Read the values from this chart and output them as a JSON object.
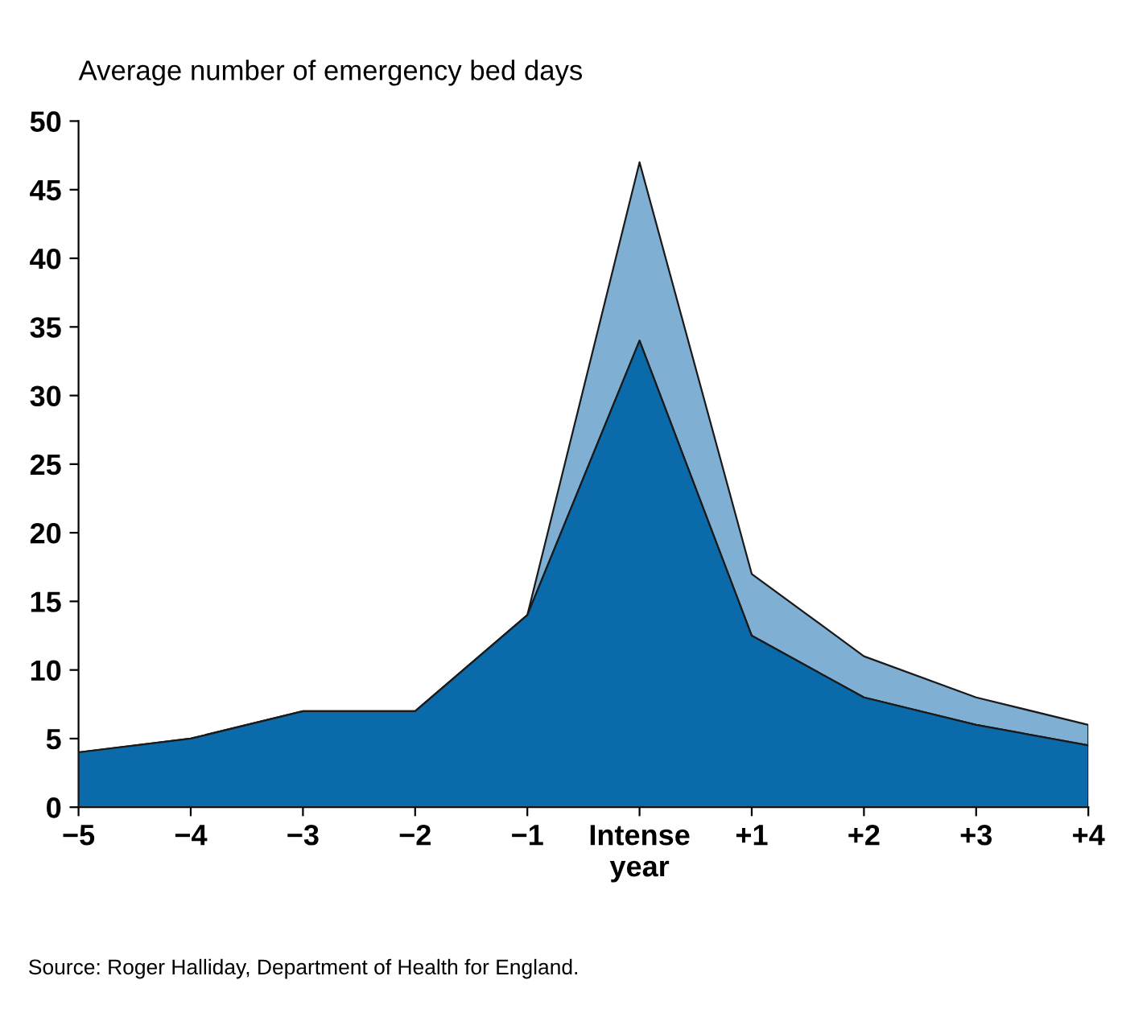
{
  "chart_data": {
    "type": "area",
    "stacked": true,
    "ylabel": "Average number of emergency bed days",
    "categories": [
      "−5",
      "−4",
      "−3",
      "−2",
      "−1",
      "Intense\nyear",
      "+1",
      "+2",
      "+3",
      "+4"
    ],
    "series": [
      {
        "color": "#0a6aaa",
        "values": [
          4,
          5,
          7,
          7,
          14,
          34,
          12.5,
          8,
          6,
          4.5
        ]
      },
      {
        "color": "#7fb0d4",
        "values": [
          0,
          0,
          0,
          0,
          0,
          13,
          4.5,
          3,
          2,
          1.5
        ]
      }
    ],
    "ylim": [
      0,
      50
    ],
    "yticks": [
      0,
      5,
      10,
      15,
      20,
      25,
      30,
      35,
      40,
      45,
      50
    ],
    "grid": false,
    "annotations": [
      "Source: Roger Halliday, Department of Health for England."
    ]
  }
}
